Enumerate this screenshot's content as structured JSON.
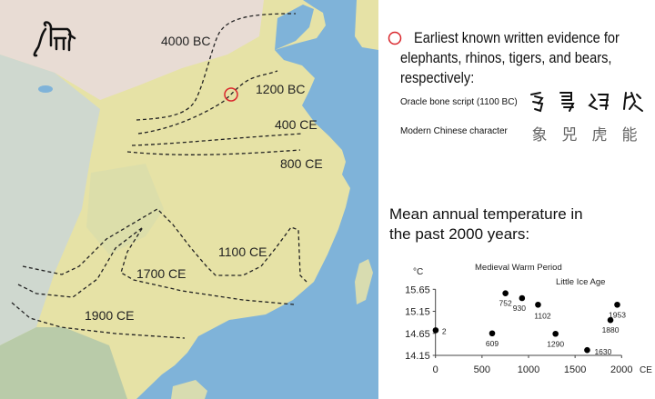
{
  "map": {
    "labels": [
      "4000 BC",
      "1200 BC",
      "400 CE",
      "800 CE",
      "1100 CE",
      "1700 CE",
      "1900 CE"
    ],
    "marker_color": "#d9262c",
    "colors": {
      "land": "#e9e4a8",
      "sea": "#7fb3d9",
      "highland": "#c9d3c8",
      "north": "#e8dcd4"
    }
  },
  "legend": {
    "circle_text_line1": "Earliest known written evidence for",
    "circle_text_line2": "elephants, rhinos, tigers, and bears,",
    "circle_text_line3": "respectively:",
    "oracle_label": "Oracle bone script (1100 BC)",
    "modern_label": "Modern Chinese character",
    "modern_chars": [
      "象",
      "兕",
      "虎",
      "能"
    ]
  },
  "temperature": {
    "title_line1": "Mean annual temperature in",
    "title_line2": "the past 2000 years:"
  },
  "chart_data": {
    "type": "scatter",
    "ylabel": "°C",
    "xlabel": "CE",
    "xlim": [
      0,
      2000
    ],
    "ylim": [
      14.15,
      15.65
    ],
    "xticks": [
      "0",
      "500",
      "1000",
      "1500",
      "2000"
    ],
    "yticks": [
      "15.65",
      "15.15",
      "14.65",
      "14.15"
    ],
    "annotations": [
      "Medieval Warm Period",
      "Little Ice Age"
    ],
    "points": [
      {
        "x": 2,
        "y": 14.72,
        "label": "2"
      },
      {
        "x": 609,
        "y": 14.65,
        "label": "609"
      },
      {
        "x": 752,
        "y": 15.56,
        "label": "752"
      },
      {
        "x": 930,
        "y": 15.45,
        "label": "930"
      },
      {
        "x": 1102,
        "y": 15.3,
        "label": "1102"
      },
      {
        "x": 1290,
        "y": 14.64,
        "label": "1290"
      },
      {
        "x": 1630,
        "y": 14.27,
        "label": "1630"
      },
      {
        "x": 1880,
        "y": 14.95,
        "label": "1880"
      },
      {
        "x": 1953,
        "y": 15.3,
        "label": "1953"
      }
    ]
  }
}
